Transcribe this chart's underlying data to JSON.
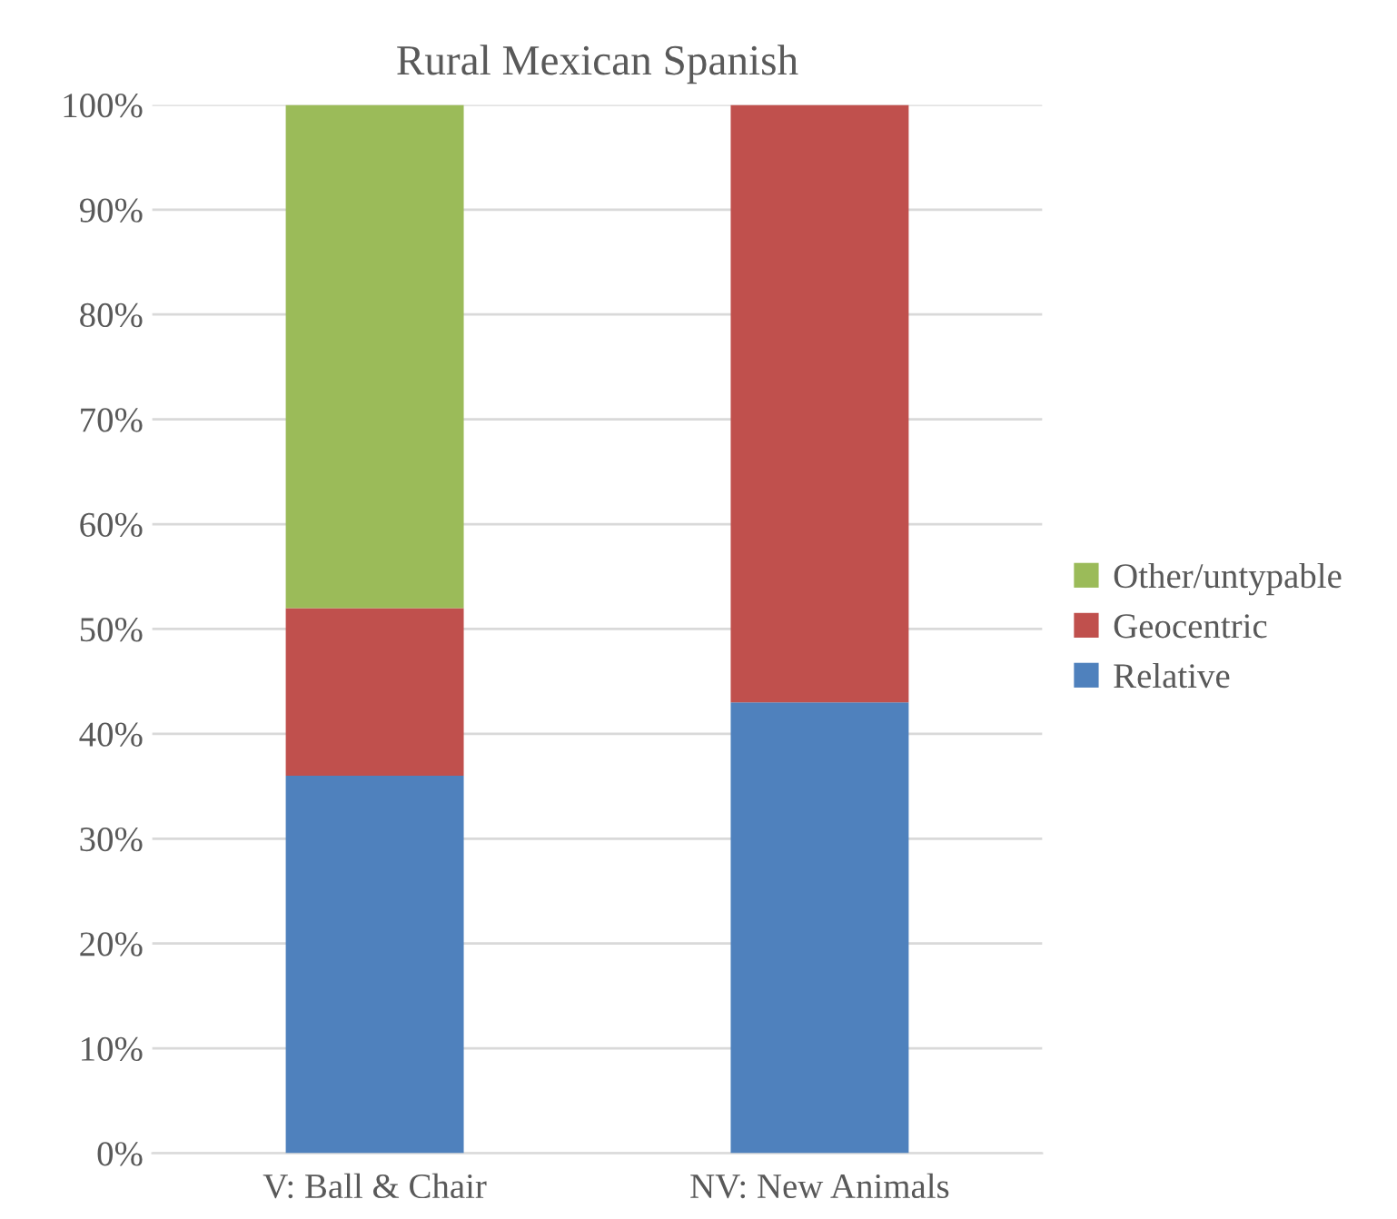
{
  "chart_data": {
    "type": "bar",
    "title": "Rural Mexican Spanish",
    "stacked": true,
    "categories": [
      "V: Ball & Chair",
      "NV: New Animals"
    ],
    "series": [
      {
        "name": "Relative",
        "color": "#4f81bd",
        "values": [
          36,
          43
        ]
      },
      {
        "name": "Geocentric",
        "color": "#c0504d",
        "values": [
          16,
          57
        ]
      },
      {
        "name": "Other/untypable",
        "color": "#9bbb59",
        "values": [
          48,
          0
        ]
      }
    ],
    "ylim": [
      0,
      100
    ],
    "yticks": [
      {
        "value": 0,
        "label": "0%"
      },
      {
        "value": 10,
        "label": "10%"
      },
      {
        "value": 20,
        "label": "20%"
      },
      {
        "value": 30,
        "label": "30%"
      },
      {
        "value": 40,
        "label": "40%"
      },
      {
        "value": 50,
        "label": "50%"
      },
      {
        "value": 60,
        "label": "60%"
      },
      {
        "value": 70,
        "label": "70%"
      },
      {
        "value": 80,
        "label": "80%"
      },
      {
        "value": 90,
        "label": "90%"
      },
      {
        "value": 100,
        "label": "100%"
      }
    ],
    "grid": "y",
    "legend": "right"
  }
}
